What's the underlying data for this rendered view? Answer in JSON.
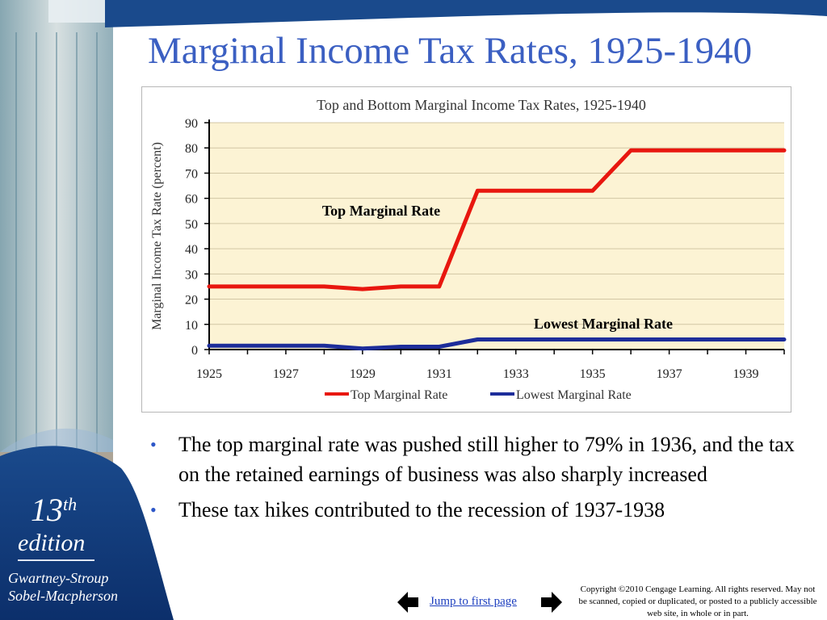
{
  "slide": {
    "title": "Marginal Income Tax Rates, 1925-1940",
    "edition_number": "13",
    "edition_suffix": "th",
    "edition_word": "edition",
    "authors_line1": "Gwartney-Stroup",
    "authors_line2": "Sobel-Macpherson"
  },
  "chart_data": {
    "type": "line",
    "title": "Top and Bottom Marginal Income Tax Rates, 1925-1940",
    "xlabel": "",
    "ylabel": "Marginal Income Tax Rate (percent)",
    "xlim": [
      1925,
      1940
    ],
    "ylim": [
      0,
      90
    ],
    "y_ticks": [
      "0",
      "10",
      "20",
      "30",
      "40",
      "50",
      "60",
      "70",
      "80",
      "90"
    ],
    "x_ticks": [
      "1925",
      "1927",
      "1929",
      "1931",
      "1933",
      "1935",
      "1937",
      "1939"
    ],
    "grid": "horizontal",
    "plot_background": "#fcf3d4",
    "legend_position": "bottom",
    "x": [
      1925,
      1926,
      1927,
      1928,
      1929,
      1930,
      1931,
      1932,
      1933,
      1934,
      1935,
      1936,
      1937,
      1938,
      1939,
      1940
    ],
    "series": [
      {
        "name": "Top Marginal Rate",
        "color": "#e8170f",
        "values": [
          25,
          25,
          25,
          25,
          24,
          25,
          25,
          63,
          63,
          63,
          63,
          79,
          79,
          79,
          79,
          79
        ]
      },
      {
        "name": "Lowest Marginal Rate",
        "color": "#1d2d9a",
        "values": [
          1.5,
          1.5,
          1.5,
          1.5,
          0.375,
          1.125,
          1.125,
          4,
          4,
          4,
          4,
          4,
          4,
          4,
          4,
          4
        ]
      }
    ],
    "annotations": [
      "Top Marginal Rate",
      "Lowest Marginal Rate"
    ]
  },
  "bullets": [
    "The top marginal rate was pushed still higher to 79% in 1936, and the tax on the retained earnings of business was also sharply increased",
    "These tax hikes contributed to the recession of 1937-1938"
  ],
  "footer": {
    "jump_link": "Jump to first page",
    "copyright": "Copyright ©2010 Cengage Learning. All rights reserved. May not be scanned, copied or duplicated, or posted to a publicly accessible web site, in whole or in part.",
    "prev_icon": "arrow-left-icon",
    "next_icon": "arrow-right-icon"
  }
}
